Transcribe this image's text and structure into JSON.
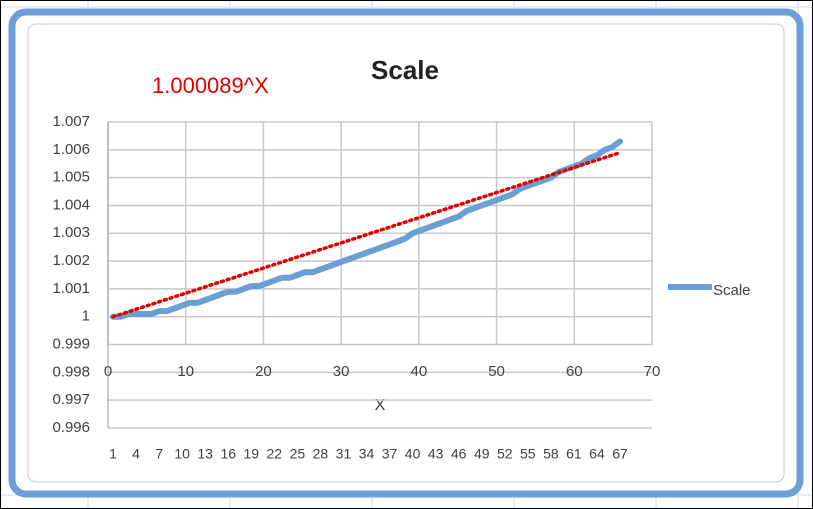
{
  "chart_data": {
    "type": "line",
    "title": "Scale",
    "annotation": "1.000089^X",
    "x_label": "X",
    "categories": [
      "1",
      null,
      null,
      "4",
      null,
      null,
      "7",
      null,
      null,
      "10",
      null,
      null,
      "13",
      null,
      null,
      "16",
      null,
      null,
      "19",
      null,
      null,
      "22",
      null,
      null,
      "25",
      null,
      null,
      "28",
      null,
      null,
      "31",
      null,
      null,
      "34",
      null,
      null,
      "37",
      null,
      null,
      "40",
      null,
      null,
      "43",
      null,
      null,
      "46",
      null,
      null,
      "49",
      null,
      null,
      "52",
      null,
      null,
      "55",
      null,
      null,
      "58",
      null,
      null,
      "61",
      null,
      null,
      "64",
      null,
      null,
      "67"
    ],
    "series": [
      {
        "name": "Scale",
        "color": "#6a9fd4",
        "values": [
          1.0,
          1.0,
          1.0001,
          1.0001,
          1.0001,
          1.0001,
          1.0002,
          1.0002,
          1.0003,
          1.0004,
          1.0005,
          1.0005,
          1.0006,
          1.0007,
          1.0008,
          1.0009,
          1.0009,
          1.001,
          1.0011,
          1.0011,
          1.0012,
          1.0013,
          1.0014,
          1.0014,
          1.0015,
          1.0016,
          1.0016,
          1.0017,
          1.0018,
          1.0019,
          1.002,
          1.0021,
          1.0022,
          1.0023,
          1.0024,
          1.0025,
          1.0026,
          1.0027,
          1.0028,
          1.003,
          1.0031,
          1.0032,
          1.0033,
          1.0034,
          1.0035,
          1.0036,
          1.0038,
          1.0039,
          1.004,
          1.0041,
          1.0042,
          1.0043,
          1.0044,
          1.0046,
          1.0047,
          1.0048,
          1.0049,
          1.005,
          1.0052,
          1.0053,
          1.0054,
          1.0055,
          1.0057,
          1.0058,
          1.006,
          1.0061,
          1.0063
        ]
      }
    ],
    "trendline": {
      "color": "#e00000",
      "values": [
        1.0,
        1.0059
      ]
    },
    "ylim": [
      0.996,
      1.007
    ],
    "yticks": [
      0.996,
      0.997,
      0.998,
      0.999,
      1,
      1.001,
      1.002,
      1.003,
      1.004,
      1.005,
      1.006,
      1.007
    ],
    "xlim": [
      0,
      70
    ],
    "xticks": [
      0,
      10,
      20,
      30,
      40,
      50,
      60,
      70
    ],
    "grid": true,
    "legend": "right"
  }
}
